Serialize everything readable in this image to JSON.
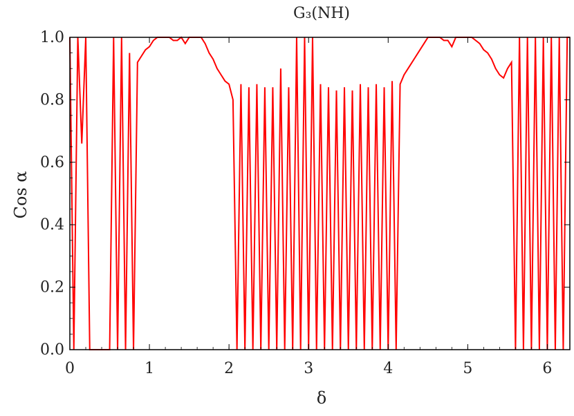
{
  "chart_data": {
    "type": "line",
    "title": "G₃(NH)",
    "xlabel": "δ",
    "ylabel": "Cos α",
    "xlim": [
      0,
      6.283
    ],
    "ylim": [
      0,
      1
    ],
    "x_ticks": [
      "0",
      "1",
      "2",
      "3",
      "4",
      "5",
      "6"
    ],
    "y_ticks": [
      "0.0",
      "0.2",
      "0.4",
      "0.6",
      "0.8",
      "1.0"
    ],
    "grid": false,
    "legend": "none",
    "series_color": "#ff0000",
    "series": [
      {
        "x": [
          0.0,
          0.05,
          0.1,
          0.15,
          0.2,
          0.25,
          0.3,
          0.35,
          0.4,
          0.45,
          0.5,
          0.55,
          0.6,
          0.65,
          0.7,
          0.75,
          0.8,
          0.85,
          0.9,
          0.95,
          1.0,
          1.05,
          1.1,
          1.15,
          1.2,
          1.25,
          1.3,
          1.35,
          1.4,
          1.45,
          1.5,
          1.55,
          1.6,
          1.65,
          1.7,
          1.75,
          1.8,
          1.85,
          1.9,
          1.95,
          2.0,
          2.05,
          2.1,
          2.15,
          2.2,
          2.25,
          2.3,
          2.35,
          2.4,
          2.45,
          2.5,
          2.55,
          2.6,
          2.65,
          2.7,
          2.75,
          2.8,
          2.85,
          2.9,
          2.95,
          3.0,
          3.05,
          3.1,
          3.15,
          3.2,
          3.25,
          3.3,
          3.35,
          3.4,
          3.45,
          3.5,
          3.55,
          3.6,
          3.65,
          3.7,
          3.75,
          3.8,
          3.85,
          3.9,
          3.95,
          4.0,
          4.05,
          4.1,
          4.15,
          4.2,
          4.25,
          4.3,
          4.35,
          4.4,
          4.45,
          4.5,
          4.55,
          4.6,
          4.65,
          4.7,
          4.75,
          4.8,
          4.85,
          4.9,
          4.95,
          5.0,
          5.05,
          5.1,
          5.15,
          5.2,
          5.25,
          5.3,
          5.35,
          5.4,
          5.45,
          5.5,
          5.55,
          5.6,
          5.65,
          5.7,
          5.75,
          5.8,
          5.85,
          5.9,
          5.95,
          6.0,
          6.05,
          6.1,
          6.15,
          6.2,
          6.25,
          6.28
        ],
        "y": [
          1.0,
          0.0,
          1.0,
          0.66,
          1.0,
          0.0,
          0.0,
          0.0,
          0.0,
          0.0,
          0.0,
          1.0,
          0.0,
          1.0,
          0.0,
          0.95,
          0.0,
          0.92,
          0.94,
          0.96,
          0.97,
          0.99,
          1.0,
          1.0,
          1.0,
          1.0,
          0.99,
          0.99,
          1.0,
          0.98,
          1.0,
          1.0,
          1.0,
          1.0,
          0.98,
          0.95,
          0.93,
          0.9,
          0.88,
          0.86,
          0.85,
          0.8,
          0.0,
          0.85,
          0.0,
          0.84,
          0.0,
          0.85,
          0.0,
          0.84,
          0.0,
          0.84,
          0.0,
          0.9,
          0.0,
          0.84,
          0.0,
          1.0,
          0.0,
          1.0,
          0.0,
          1.0,
          0.0,
          0.85,
          0.0,
          0.84,
          0.0,
          0.83,
          0.0,
          0.84,
          0.0,
          0.83,
          0.0,
          0.85,
          0.0,
          0.84,
          0.0,
          0.85,
          0.0,
          0.84,
          0.0,
          0.86,
          0.0,
          0.85,
          0.88,
          0.9,
          0.92,
          0.94,
          0.96,
          0.98,
          1.0,
          1.0,
          1.0,
          1.0,
          0.99,
          0.99,
          0.97,
          1.0,
          1.0,
          1.0,
          1.0,
          1.0,
          0.99,
          0.98,
          0.96,
          0.95,
          0.93,
          0.9,
          0.88,
          0.87,
          0.9,
          0.92,
          0.0,
          1.0,
          0.0,
          1.0,
          0.0,
          1.0,
          0.0,
          1.0,
          0.0,
          1.0,
          0.0,
          1.0,
          0.0,
          1.0,
          1.0
        ]
      }
    ]
  }
}
